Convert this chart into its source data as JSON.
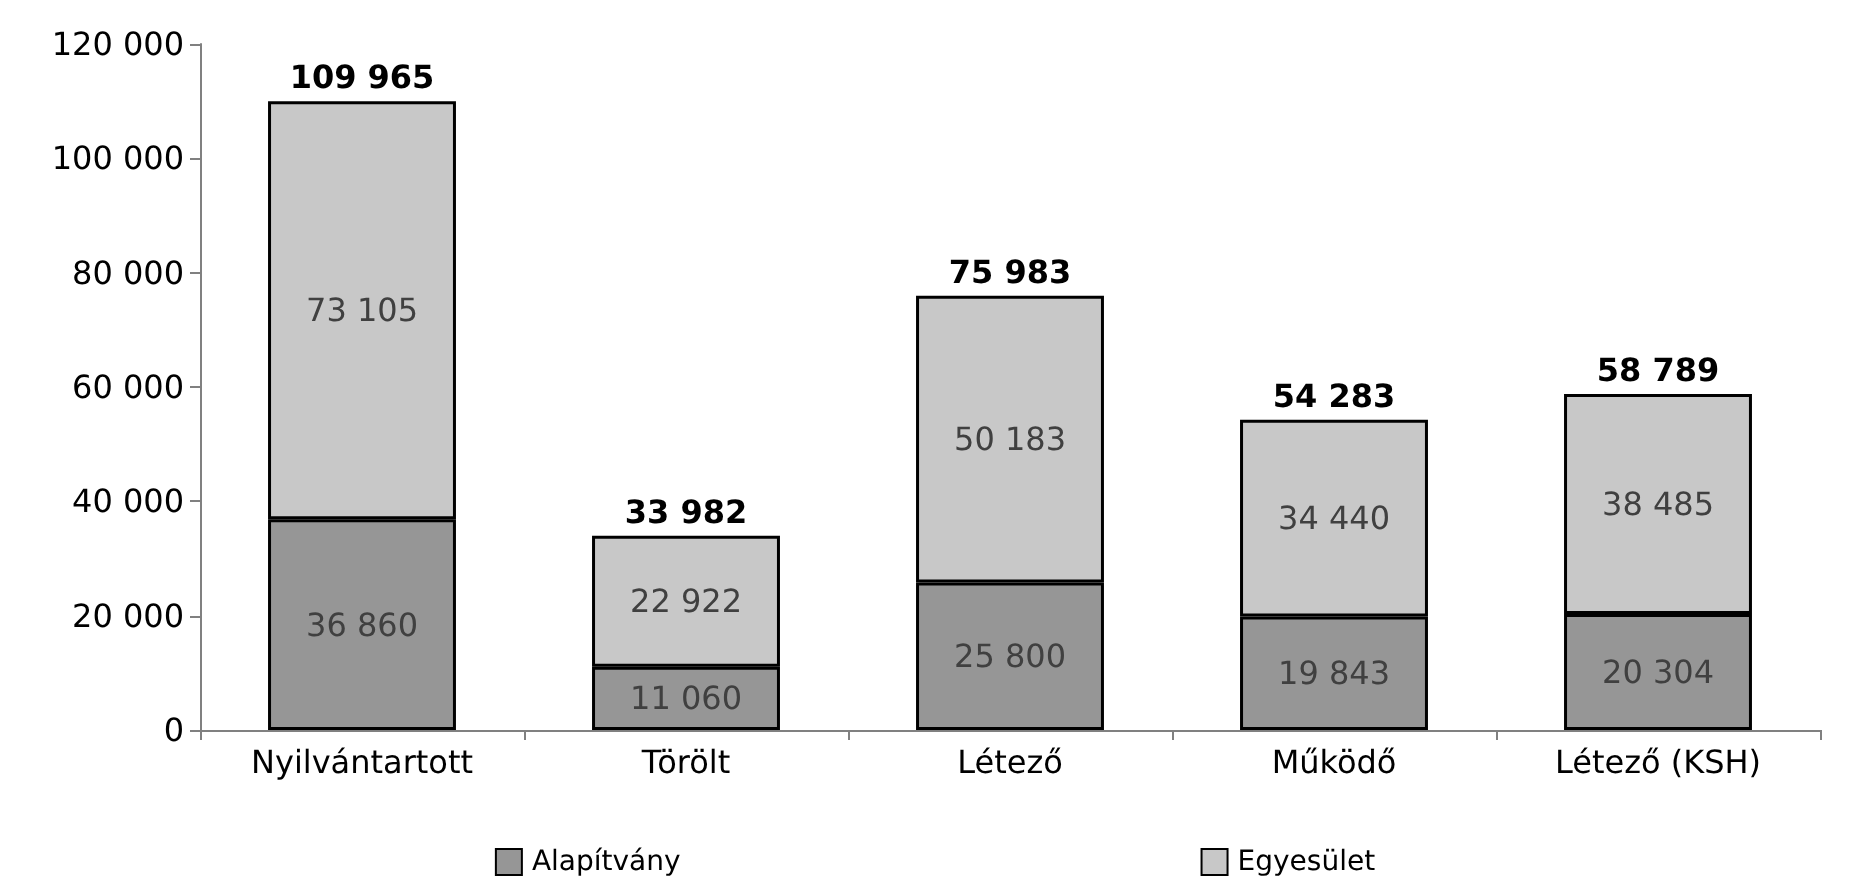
{
  "chart_data": {
    "type": "bar",
    "stacked": true,
    "categories": [
      "Nyilvántartott",
      "Törölt",
      "Létező",
      "Működő",
      "Létező (KSH)"
    ],
    "series": [
      {
        "name": "Alapítvány",
        "color": "#969696",
        "values": [
          36860,
          11060,
          25800,
          19843,
          20304
        ],
        "value_labels": [
          "36 860",
          "11 060",
          "25 800",
          "19 843",
          "20 304"
        ]
      },
      {
        "name": "Egyesület",
        "color": "#c8c8c8",
        "values": [
          73105,
          22922,
          50183,
          34440,
          38485
        ],
        "value_labels": [
          "73 105",
          "22 922",
          "50 183",
          "34 440",
          "38 485"
        ]
      }
    ],
    "totals": [
      "109 965",
      "33 982",
      "75 983",
      "54 283",
      "58 789"
    ],
    "ylim": [
      0,
      120000
    ],
    "yticks": [
      {
        "value": 0,
        "label": "0"
      },
      {
        "value": 20000,
        "label": "20 000"
      },
      {
        "value": 40000,
        "label": "40 000"
      },
      {
        "value": 60000,
        "label": "60 000"
      },
      {
        "value": 80000,
        "label": "80 000"
      },
      {
        "value": 100000,
        "label": "100 000"
      },
      {
        "value": 120000,
        "label": "120 000"
      }
    ],
    "grid": false,
    "legend": "bottom"
  }
}
